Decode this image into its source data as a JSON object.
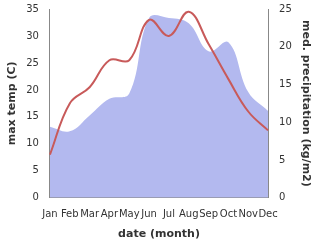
{
  "chart_data": {
    "type": "line",
    "x_label": "date (month)",
    "y_label": "max temp (C)",
    "y2_label": "med. precipitation (kg/m2)",
    "categories": [
      "Jan",
      "Feb",
      "Mar",
      "Apr",
      "May",
      "Jun",
      "Jul",
      "Aug",
      "Sep",
      "Oct",
      "Nov",
      "Dec"
    ],
    "series": [
      {
        "type": "area",
        "axis": "y2",
        "color": "#b3b9ef",
        "values": [
          9.4,
          8.8,
          10.9,
          13.1,
          13.8,
          23.8,
          23.8,
          23.1,
          19.4,
          20.6,
          14.0,
          11.5
        ]
      },
      {
        "type": "line",
        "axis": "y",
        "color": "#c85a5a",
        "values": [
          8,
          17.5,
          20.5,
          25.5,
          25.5,
          33,
          30,
          34.5,
          28.5,
          22,
          16,
          12.5
        ]
      }
    ],
    "ylim": [
      0,
      35
    ],
    "yticks": [
      0,
      5,
      10,
      15,
      20,
      25,
      30,
      35
    ],
    "y2lim": [
      0,
      25
    ],
    "y2ticks": [
      0,
      5,
      10,
      15,
      20,
      25
    ],
    "grid": false
  }
}
